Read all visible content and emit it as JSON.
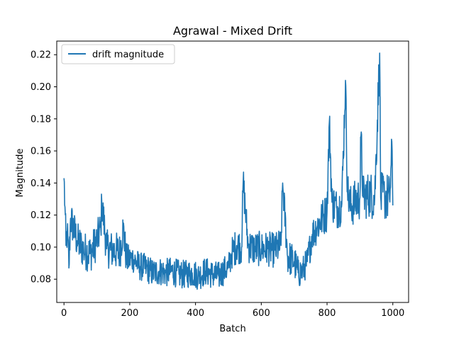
{
  "chart_data": {
    "type": "line",
    "title": "Agrawal - Mixed Drift",
    "xlabel": "Batch",
    "ylabel": "Magnitude",
    "xlim": [
      -22,
      1048
    ],
    "ylim": [
      0.0655,
      0.2285
    ],
    "xticks": [
      0,
      200,
      400,
      600,
      800,
      1000
    ],
    "yticks": [
      0.08,
      0.1,
      0.12,
      0.14,
      0.16,
      0.18,
      0.2,
      0.22
    ],
    "xtick_labels": [
      "0",
      "200",
      "400",
      "600",
      "800",
      "1000"
    ],
    "ytick_labels": [
      "0.08",
      "0.10",
      "0.12",
      "0.14",
      "0.16",
      "0.18",
      "0.20",
      "0.22"
    ],
    "grid": false,
    "legend": {
      "position": "top-left"
    },
    "color": "#1f77b4",
    "series": [
      {
        "name": "drift magnitude",
        "anchors": [
          [
            0,
            0.143
          ],
          [
            3,
            0.125
          ],
          [
            6,
            0.101
          ],
          [
            10,
            0.11
          ],
          [
            15,
            0.087
          ],
          [
            20,
            0.118
          ],
          [
            40,
            0.104
          ],
          [
            60,
            0.098
          ],
          [
            80,
            0.096
          ],
          [
            100,
            0.104
          ],
          [
            112,
            0.112
          ],
          [
            115,
            0.128
          ],
          [
            130,
            0.099
          ],
          [
            150,
            0.098
          ],
          [
            170,
            0.097
          ],
          [
            180,
            0.112
          ],
          [
            190,
            0.092
          ],
          [
            210,
            0.093
          ],
          [
            230,
            0.088
          ],
          [
            250,
            0.087
          ],
          [
            270,
            0.084
          ],
          [
            290,
            0.085
          ],
          [
            310,
            0.084
          ],
          [
            330,
            0.085
          ],
          [
            350,
            0.083
          ],
          [
            370,
            0.083
          ],
          [
            390,
            0.084
          ],
          [
            410,
            0.082
          ],
          [
            430,
            0.085
          ],
          [
            450,
            0.083
          ],
          [
            470,
            0.082
          ],
          [
            490,
            0.086
          ],
          [
            500,
            0.087
          ],
          [
            510,
            0.096
          ],
          [
            525,
            0.101
          ],
          [
            540,
            0.1
          ],
          [
            545,
            0.141
          ],
          [
            560,
            0.101
          ],
          [
            580,
            0.099
          ],
          [
            600,
            0.099
          ],
          [
            620,
            0.099
          ],
          [
            640,
            0.098
          ],
          [
            660,
            0.101
          ],
          [
            665,
            0.14
          ],
          [
            680,
            0.094
          ],
          [
            700,
            0.091
          ],
          [
            712,
            0.084
          ],
          [
            725,
            0.085
          ],
          [
            740,
            0.091
          ],
          [
            755,
            0.108
          ],
          [
            770,
            0.113
          ],
          [
            785,
            0.118
          ],
          [
            800,
            0.122
          ],
          [
            807,
            0.178
          ],
          [
            815,
            0.128
          ],
          [
            830,
            0.124
          ],
          [
            845,
            0.127
          ],
          [
            856,
            0.204
          ],
          [
            862,
            0.136
          ],
          [
            870,
            0.125
          ],
          [
            885,
            0.128
          ],
          [
            900,
            0.131
          ],
          [
            903,
            0.169
          ],
          [
            910,
            0.131
          ],
          [
            930,
            0.133
          ],
          [
            945,
            0.131
          ],
          [
            960,
            0.221
          ],
          [
            963,
            0.131
          ],
          [
            975,
            0.132
          ],
          [
            990,
            0.13
          ],
          [
            998,
            0.16
          ],
          [
            1000,
            0.126
          ]
        ],
        "noise_amplitude": [
          [
            0,
            0.012
          ],
          [
            180,
            0.012
          ],
          [
            200,
            0.009
          ],
          [
            500,
            0.009
          ],
          [
            520,
            0.011
          ],
          [
            700,
            0.011
          ],
          [
            730,
            0.009
          ],
          [
            780,
            0.012
          ],
          [
            1000,
            0.016
          ]
        ],
        "points_count": 1000
      }
    ]
  }
}
